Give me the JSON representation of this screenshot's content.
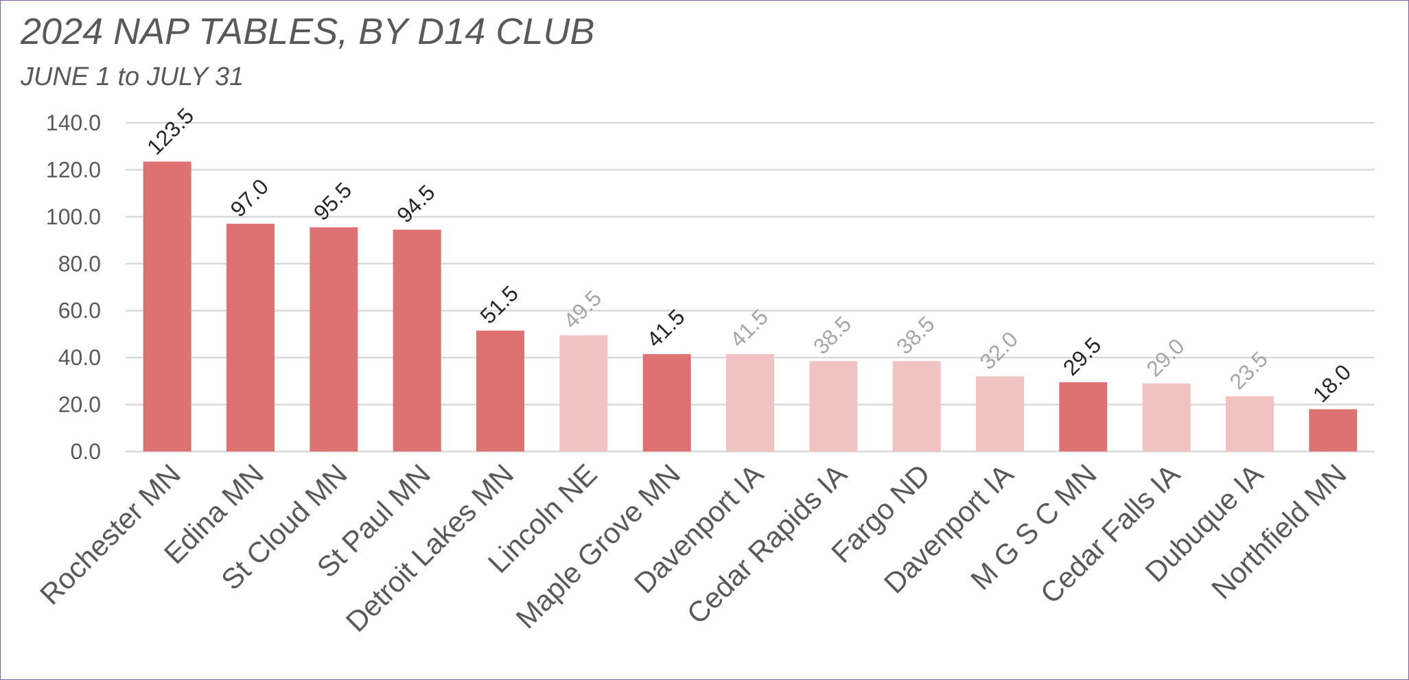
{
  "chart_data": {
    "type": "bar",
    "title": "2024 NAP TABLES, BY D14 CLUB",
    "subtitle": "JUNE 1 to JULY 31",
    "xlabel": "",
    "ylabel": "",
    "ylim": [
      0,
      140
    ],
    "yticks": [
      "0.0",
      "20.0",
      "40.0",
      "60.0",
      "80.0",
      "100.0",
      "120.0",
      "140.0"
    ],
    "grid": true,
    "categories": [
      "Rochester MN",
      "Edina MN",
      "St Cloud MN",
      "St Paul MN",
      "Detroit Lakes MN",
      "Lincoln NE",
      "Maple Grove MN",
      "Davenport IA",
      "Cedar Rapids IA",
      "Fargo ND",
      "Davenport IA",
      "M G S C MN",
      "Cedar Falls IA",
      "Dubuque IA",
      "Northfield MN"
    ],
    "values": [
      123.5,
      97.0,
      95.5,
      94.5,
      51.5,
      49.5,
      41.5,
      41.5,
      38.5,
      38.5,
      32.0,
      29.5,
      29.0,
      23.5,
      18.0
    ],
    "labels": [
      "123.5",
      "97.0",
      "95.5",
      "94.5",
      "51.5",
      "49.5",
      "41.5",
      "41.5",
      "38.5",
      "38.5",
      "32.0",
      "29.5",
      "29.0",
      "23.5",
      "18.0"
    ],
    "highlighted": [
      true,
      true,
      true,
      true,
      true,
      false,
      true,
      false,
      false,
      false,
      false,
      true,
      false,
      false,
      true
    ],
    "colors": {
      "highlight_bar": "#de7272",
      "muted_bar": "#f0c2c2",
      "highlight_label": "#262626",
      "muted_label": "#a6a6a6",
      "grid": "#d9d9d9",
      "axis_text": "#595959"
    }
  }
}
